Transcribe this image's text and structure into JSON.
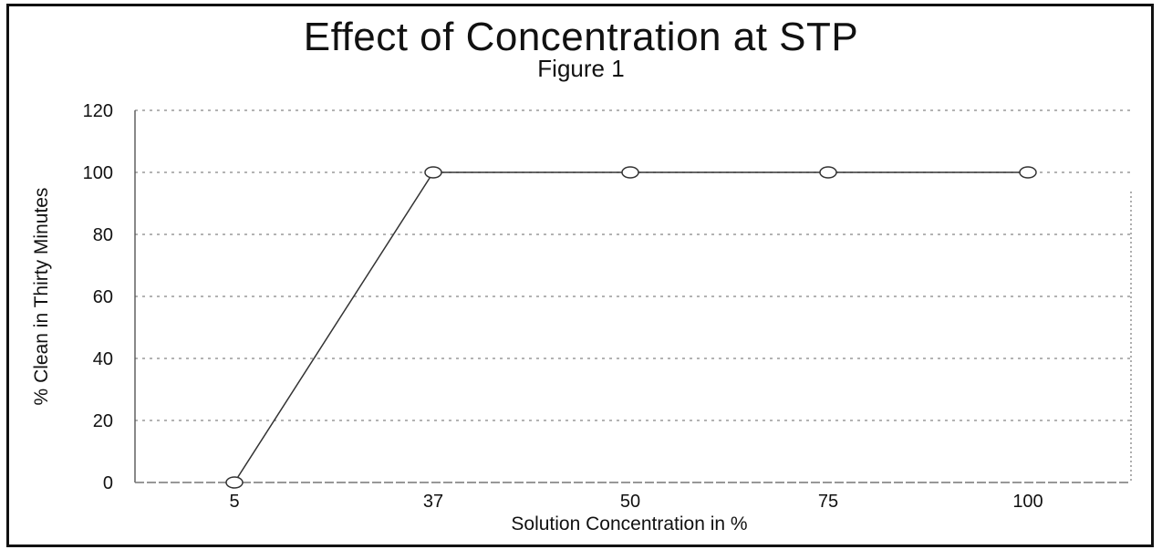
{
  "chart_data": {
    "type": "line",
    "title": "Effect of Concentration at STP",
    "subtitle": "Figure 1",
    "xlabel": "Solution Concentration in %",
    "ylabel": "% Clean in Thirty Minutes",
    "categories": [
      "5",
      "37",
      "50",
      "75",
      "100"
    ],
    "series": [
      {
        "values": [
          0,
          100,
          100,
          100,
          100
        ]
      }
    ],
    "yticks": [
      0,
      20,
      40,
      60,
      80,
      100,
      120
    ],
    "ylim": [
      0,
      120
    ],
    "grid": "horizontal dotted",
    "legend": "none",
    "line_color": "#333333",
    "grid_color": "#9a9a9a"
  }
}
